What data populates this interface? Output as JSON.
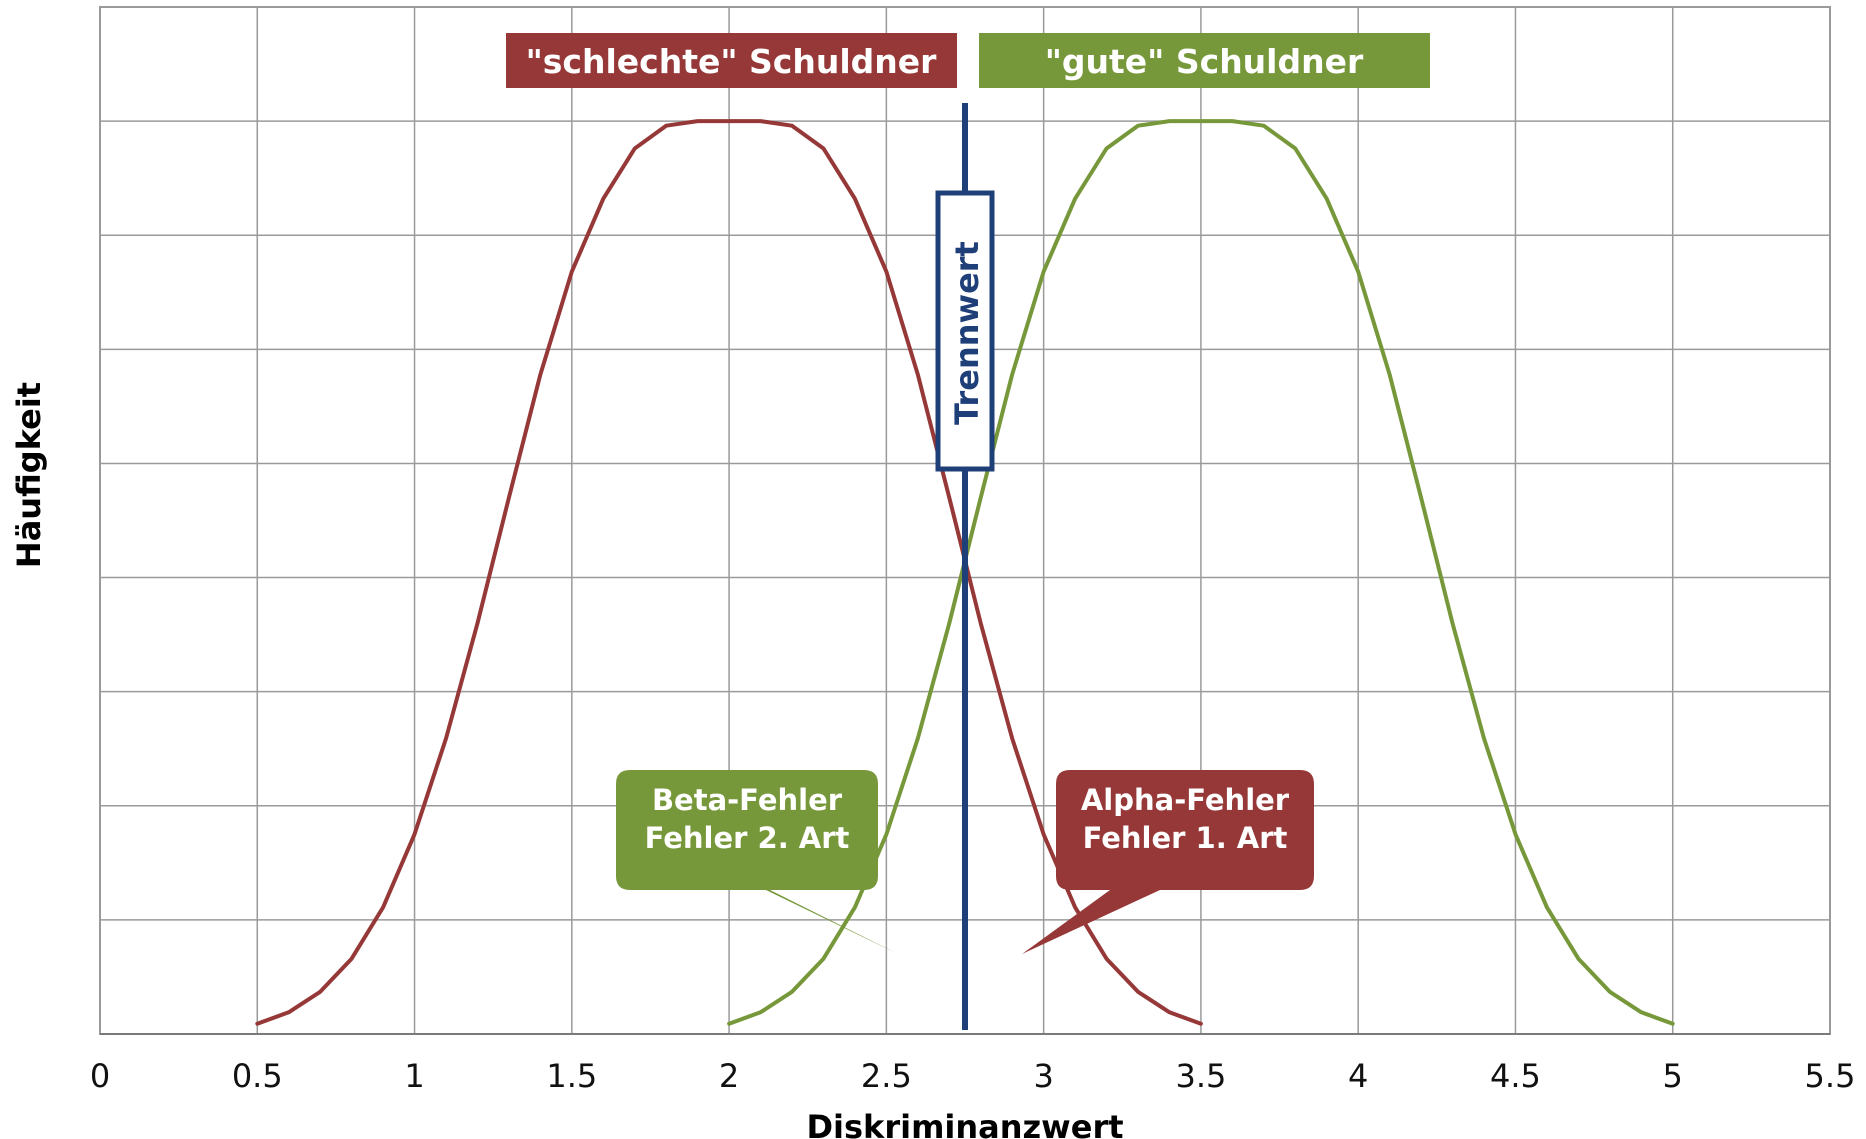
{
  "chart_data": {
    "type": "line",
    "title": "",
    "xlabel": "Diskriminanzwert",
    "ylabel": "Häufigkeit",
    "xlim": [
      0,
      5.5
    ],
    "ylim": [
      0,
      8
    ],
    "x_ticks": [
      "0",
      "0.5",
      "1",
      "1.5",
      "2",
      "2.5",
      "3",
      "3.5",
      "4",
      "4.5",
      "5",
      "5.5"
    ],
    "y_ticks_labeled": false,
    "grid": true,
    "series": [
      {
        "name": "\"schlechte\" Schuldner",
        "color": "#963838",
        "x": [
          0.5,
          0.6,
          0.7,
          0.8,
          0.9,
          1.0,
          1.1,
          1.2,
          1.3,
          1.4,
          1.5,
          1.6,
          1.7,
          1.8,
          1.9,
          2.0,
          2.1,
          2.2,
          2.3,
          2.4,
          2.5,
          2.6,
          2.7,
          2.8,
          2.9,
          3.0,
          3.1,
          3.2,
          3.3,
          3.4,
          3.5
        ],
        "y": [
          0.09,
          0.19,
          0.37,
          0.66,
          1.11,
          1.75,
          2.59,
          3.6,
          4.7,
          5.78,
          6.68,
          7.32,
          7.76,
          7.96,
          8.0,
          8.0,
          8.0,
          7.96,
          7.76,
          7.32,
          6.68,
          5.78,
          4.7,
          3.6,
          2.59,
          1.75,
          1.11,
          0.66,
          0.37,
          0.19,
          0.09
        ]
      },
      {
        "name": "\"gute\" Schuldner",
        "color": "#77983a",
        "x": [
          2.0,
          2.1,
          2.2,
          2.3,
          2.4,
          2.5,
          2.6,
          2.7,
          2.8,
          2.9,
          3.0,
          3.1,
          3.2,
          3.3,
          3.4,
          3.5,
          3.6,
          3.7,
          3.8,
          3.9,
          4.0,
          4.1,
          4.2,
          4.3,
          4.4,
          4.5,
          4.6,
          4.7,
          4.8,
          4.9,
          5.0
        ],
        "y": [
          0.09,
          0.19,
          0.37,
          0.66,
          1.11,
          1.75,
          2.59,
          3.6,
          4.7,
          5.78,
          6.68,
          7.32,
          7.76,
          7.96,
          8.0,
          8.0,
          8.0,
          7.96,
          7.76,
          7.32,
          6.68,
          5.78,
          4.7,
          3.6,
          2.59,
          1.75,
          1.11,
          0.66,
          0.37,
          0.19,
          0.09
        ]
      }
    ],
    "threshold": {
      "label": "Trennwert",
      "x": 2.75,
      "color": "#1f3f78"
    },
    "annotations": [
      {
        "text": "\"schlechte\" Schuldner",
        "color": "#963838"
      },
      {
        "text": "\"gute\" Schuldner",
        "color": "#77983a"
      },
      {
        "lines": [
          "Beta-Fehler",
          "Fehler 2. Art"
        ],
        "color": "#77983a"
      },
      {
        "lines": [
          "Alpha-Fehler",
          "Fehler 1. Art"
        ],
        "color": "#963838"
      }
    ]
  }
}
